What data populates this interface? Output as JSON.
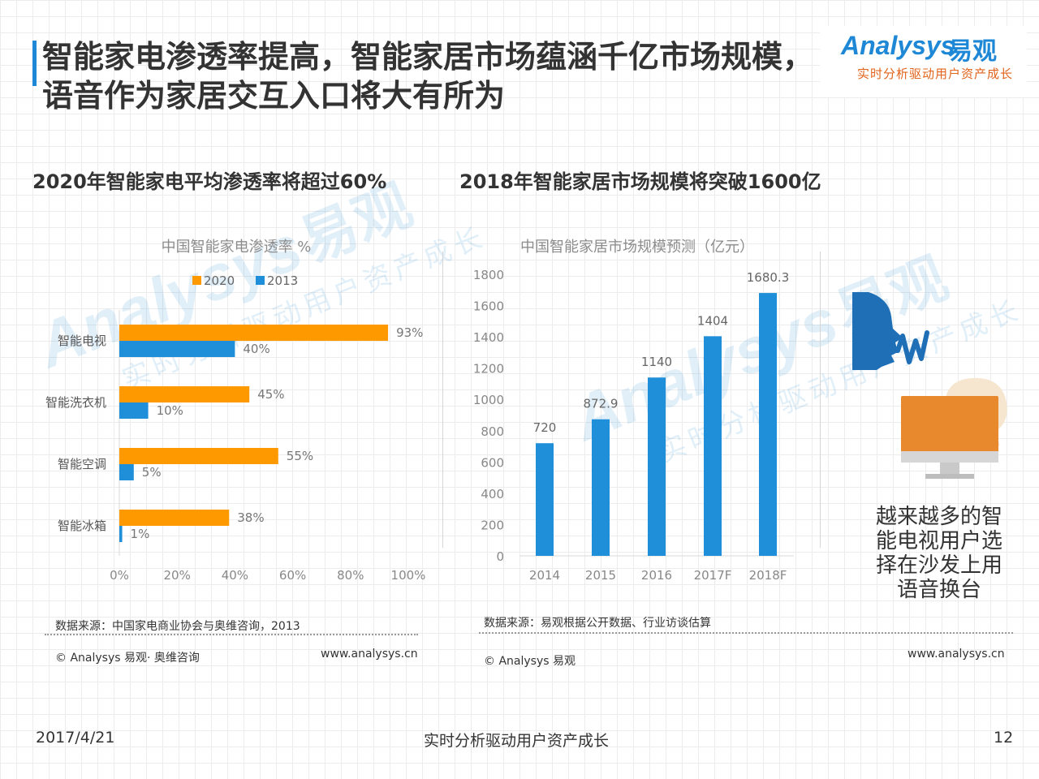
{
  "title": "智能家电渗透率提高，智能家居市场蕴涵千亿市场规模，语音作为家居交互入口将大有所为",
  "logo": {
    "word": "Analysys",
    "cn": "易观",
    "tagline": "实时分析驱动用户资产成长"
  },
  "left": {
    "heading": "2020年智能家电平均渗透率将超过60%",
    "source": "数据来源：中国家电商业协会与奥维咨询，2013",
    "copyright": "© Analysys 易观· 奥维咨询",
    "url": "www.analysys.cn"
  },
  "right": {
    "heading": "2018年智能家居市场规模将突破1600亿",
    "source": "数据来源：易观根据公开数据、行业访谈估算",
    "copyright": "© Analysys 易观",
    "url": "www.analysys.cn"
  },
  "illustration": {
    "caption": "越来越多的智能电视用户选择在沙发上用语音换台",
    "icons": [
      "speaking-head-icon",
      "sound-wave-icon",
      "tv-monitor-icon",
      "speech-bubble-icon"
    ]
  },
  "watermark": {
    "word": "Analysys",
    "cn": "易观",
    "tagline": "实时分析驱动用户资产成长"
  },
  "footer": {
    "date": "2017/4/21",
    "slogan": "实时分析驱动用户资产成长",
    "page": "12"
  },
  "colors": {
    "accent": "#1e88d6",
    "orange": "#ff9900",
    "blue": "#1e8fd8",
    "tag_orange": "#e2631b"
  },
  "chart_data": [
    {
      "type": "bar",
      "orientation": "horizontal",
      "title": "中国智能家电渗透率 %",
      "categories": [
        "智能电视",
        "智能洗衣机",
        "智能空调",
        "智能冰箱"
      ],
      "series": [
        {
          "name": "2020",
          "values": [
            93,
            45,
            55,
            38
          ],
          "labels": [
            "93%",
            "45%",
            "55%",
            "38%"
          ],
          "color": "#ff9900"
        },
        {
          "name": "2013",
          "values": [
            40,
            10,
            5,
            1
          ],
          "labels": [
            "40%",
            "10%",
            "5%",
            "1%"
          ],
          "color": "#1e8fd8"
        }
      ],
      "xlim": [
        0,
        100
      ],
      "xticks": [
        "0%",
        "20%",
        "40%",
        "60%",
        "80%",
        "100%"
      ],
      "legend": "top",
      "grid": false
    },
    {
      "type": "bar",
      "title": "中国智能家居市场规模预测（亿元）",
      "categories": [
        "2014",
        "2015",
        "2016",
        "2017F",
        "2018F"
      ],
      "values": [
        720,
        872.9,
        1140,
        1404,
        1680.3
      ],
      "labels": [
        "720",
        "872.9",
        "1140",
        "1404",
        "1680.3"
      ],
      "ylim": [
        0,
        1800
      ],
      "yticks": [
        "0",
        "200",
        "400",
        "600",
        "800",
        "1000",
        "1200",
        "1400",
        "1600",
        "1800"
      ],
      "color": "#1e8fd8",
      "grid": false
    }
  ]
}
